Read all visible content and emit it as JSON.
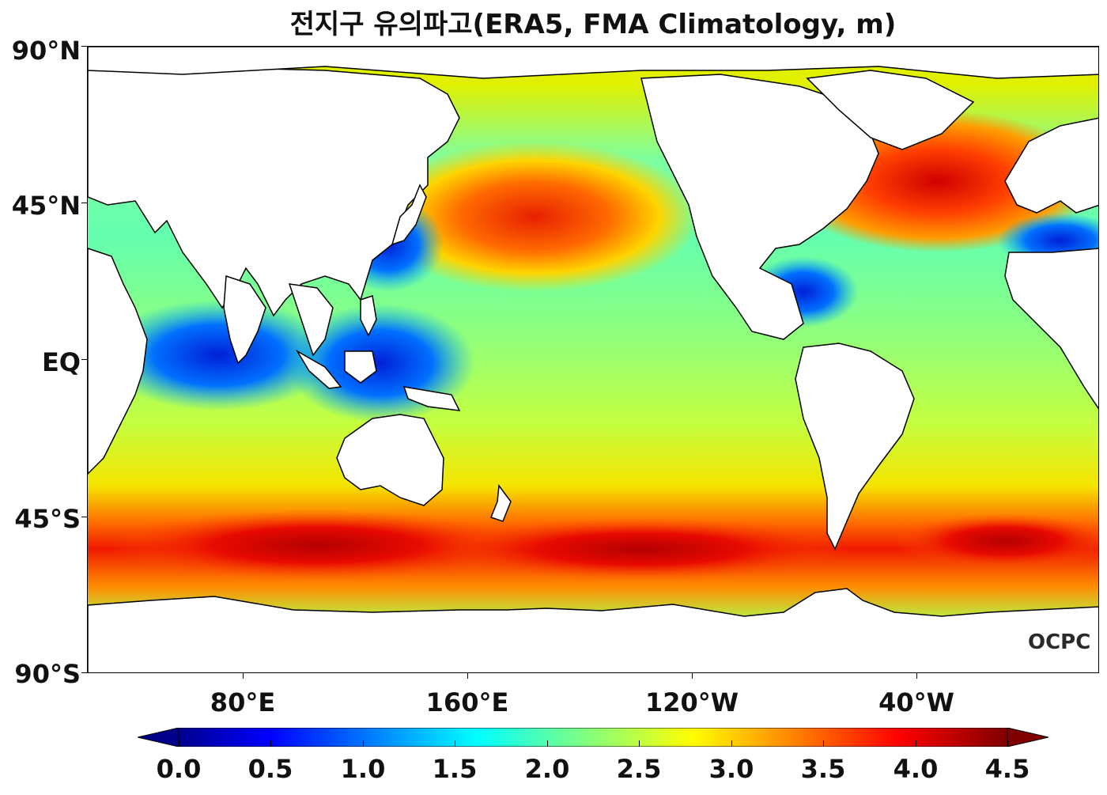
{
  "title": "전지구 유의파고(ERA5, FMA Climatology, m)",
  "lat_labels": [
    "90°N",
    "45°N",
    "EQ",
    "45°S",
    "90°S"
  ],
  "lon_labels": [
    "80°E",
    "160°E",
    "120°W",
    "40°W"
  ],
  "colorbar": {
    "labels": [
      "0.0",
      "0.5",
      "1.0",
      "1.5",
      "2.0",
      "2.5",
      "3.0",
      "3.5",
      "4.0",
      "4.5"
    ],
    "colormap": "jet",
    "range": [
      0.0,
      4.5
    ],
    "extend": "both"
  },
  "logo": "OCPC",
  "colors": {
    "land": "#ffffff",
    "coastline": "#000000",
    "low": "#00008b",
    "mid": "#c8ff37",
    "high": "#800000"
  }
}
